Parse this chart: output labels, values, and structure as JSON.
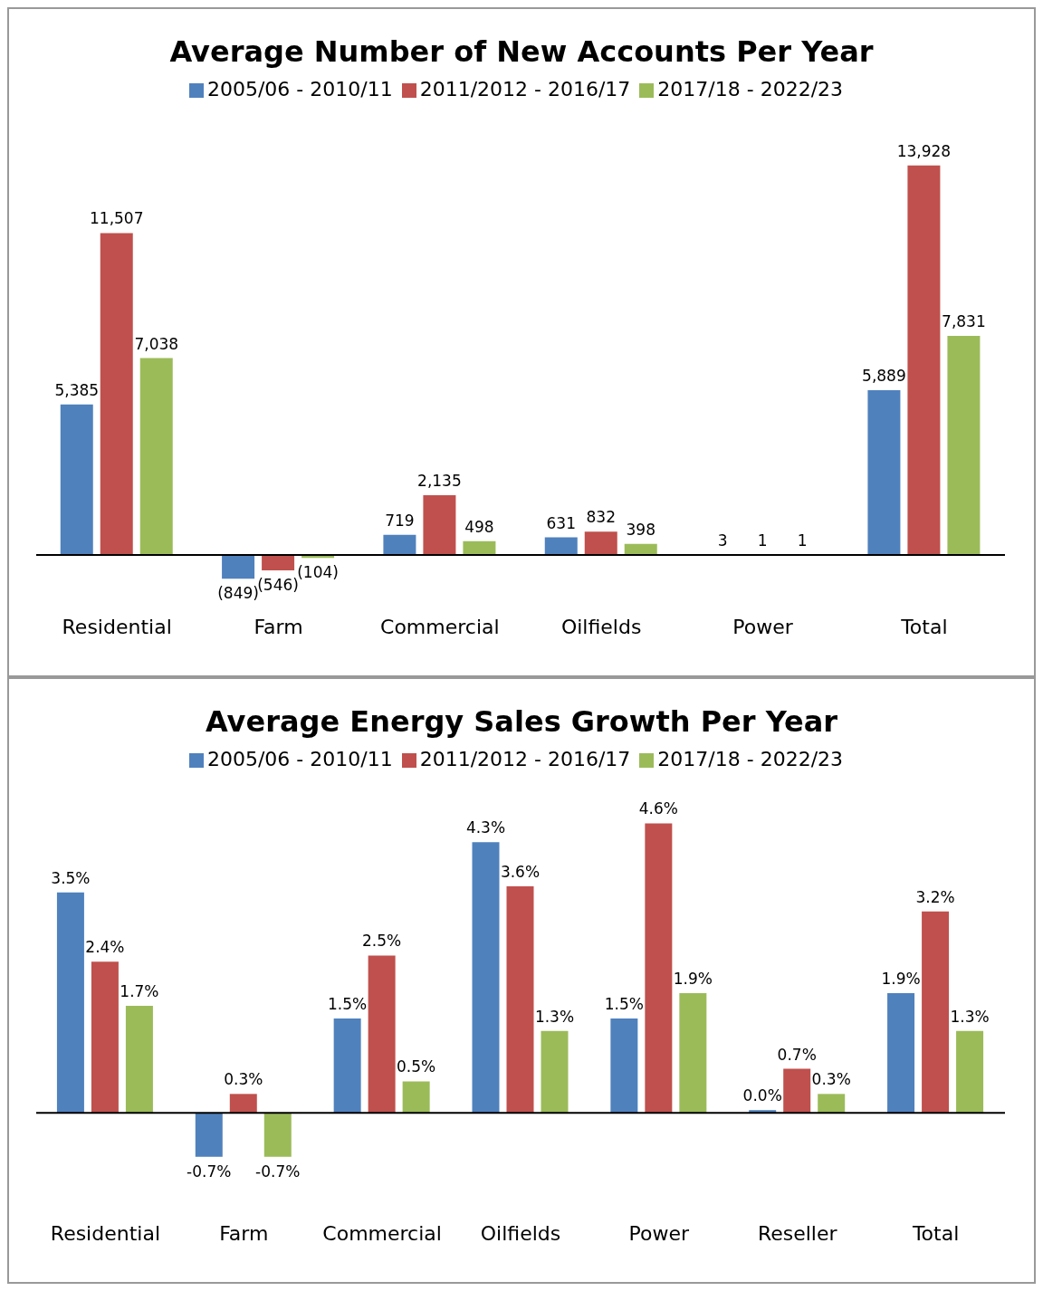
{
  "chart_data": [
    {
      "type": "bar",
      "title": "Average Number of New Accounts Per Year",
      "categories": [
        "Residential",
        "Farm",
        "Commercial",
        "Oilfields",
        "Power",
        "Total"
      ],
      "series": [
        {
          "name": "2005/06 - 2010/11",
          "color": "#4f81bd",
          "values": [
            5385,
            -849,
            719,
            631,
            3,
            5889
          ],
          "value_labels": [
            "5,385",
            "(849)",
            "719",
            "631",
            "3",
            "5,889"
          ]
        },
        {
          "name": "2011/2012 - 2016/17",
          "color": "#c0504d",
          "values": [
            11507,
            -546,
            2135,
            832,
            1,
            13928
          ],
          "value_labels": [
            "11,507",
            "(546)",
            "2,135",
            "832",
            "1",
            "13,928"
          ]
        },
        {
          "name": "2017/18 - 2022/23",
          "color": "#9bbb59",
          "values": [
            7038,
            -104,
            498,
            398,
            1,
            7831
          ],
          "value_labels": [
            "7,038",
            "(104)",
            "498",
            "398",
            "1",
            "7,831"
          ]
        }
      ],
      "legend": "top",
      "grid": false
    },
    {
      "type": "bar",
      "title": "Average Energy Sales Growth Per Year",
      "categories": [
        "Residential",
        "Farm",
        "Commercial",
        "Oilfields",
        "Power",
        "Reseller",
        "Total"
      ],
      "series": [
        {
          "name": "2005/06 - 2010/11",
          "color": "#4f81bd",
          "values": [
            3.5,
            -0.7,
            1.5,
            4.3,
            1.5,
            0.0,
            1.9
          ],
          "value_labels": [
            "3.5%",
            "-0.7%",
            "1.5%",
            "4.3%",
            "1.5%",
            "0.0%",
            "1.9%"
          ]
        },
        {
          "name": "2011/2012 - 2016/17",
          "color": "#c0504d",
          "values": [
            2.4,
            0.3,
            2.5,
            3.6,
            4.6,
            0.7,
            3.2
          ],
          "value_labels": [
            "2.4%",
            "0.3%",
            "2.5%",
            "3.6%",
            "4.6%",
            "0.7%",
            "3.2%"
          ]
        },
        {
          "name": "2017/18 - 2022/23",
          "color": "#9bbb59",
          "values": [
            1.7,
            -0.7,
            0.5,
            1.3,
            1.9,
            0.3,
            1.3
          ],
          "value_labels": [
            "1.7%",
            "-0.7%",
            "0.5%",
            "1.3%",
            "1.9%",
            "0.3%",
            "1.3%"
          ]
        }
      ],
      "legend": "top",
      "grid": false
    }
  ]
}
